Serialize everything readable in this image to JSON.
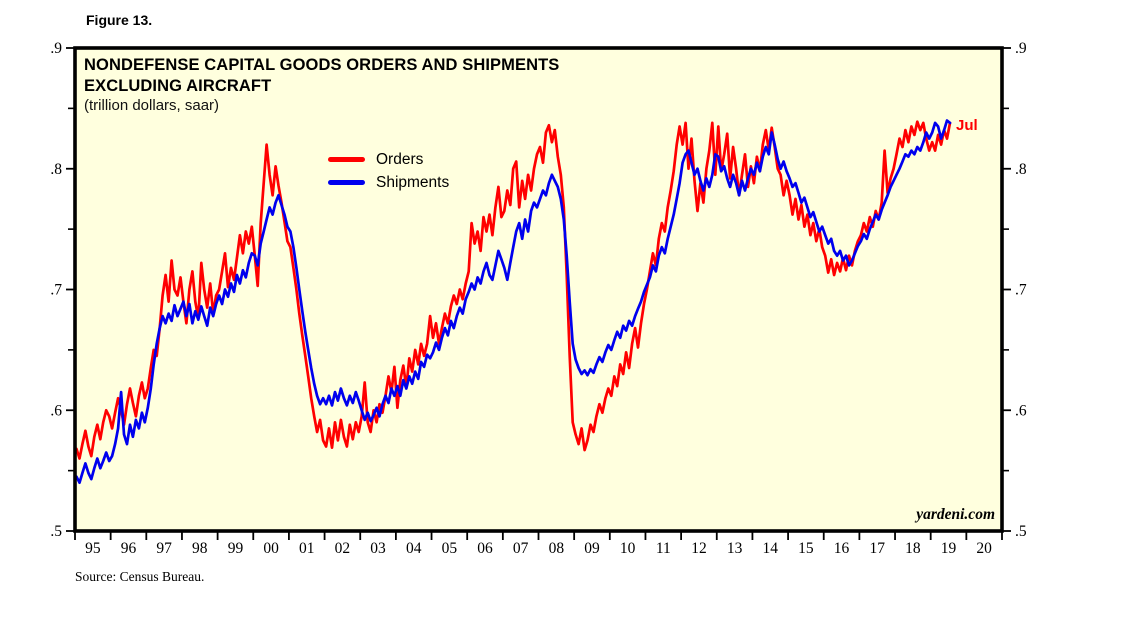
{
  "figure": {
    "label": "Figure 13."
  },
  "chart": {
    "title_line1": "NONDEFENSE CAPITAL GOODS ORDERS AND SHIPMENTS",
    "title_line2": "EXCLUDING AIRCRAFT",
    "subtitle": "(trillion dollars, saar)",
    "watermark": "yardeni.com",
    "end_label": "Jul",
    "background": "#FFFFDE",
    "border_color": "#000000"
  },
  "source": {
    "text": "Source: Census Bureau."
  },
  "chart_data": {
    "type": "line",
    "title": "NONDEFENSE CAPITAL GOODS ORDERS AND SHIPMENTS EXCLUDING AIRCRAFT",
    "subtitle": "(trillion dollars, saar)",
    "frequency": "monthly",
    "x_start": "1995-01",
    "x_end": "2019-07",
    "end_annotation": "Jul",
    "ylim": [
      0.5,
      0.9
    ],
    "grid": false,
    "legend_position": "inside-top-left",
    "y_major_ticks": [
      {
        "value": 0.5,
        "label": ".5"
      },
      {
        "value": 0.6,
        "label": ".6"
      },
      {
        "value": 0.7,
        "label": ".7"
      },
      {
        "value": 0.8,
        "label": ".8"
      },
      {
        "value": 0.9,
        "label": ".9"
      }
    ],
    "y_minor_ticks": [
      0.55,
      0.65,
      0.75,
      0.85
    ],
    "x_tick_labels": [
      "95",
      "96",
      "97",
      "98",
      "99",
      "00",
      "01",
      "02",
      "03",
      "04",
      "05",
      "06",
      "07",
      "08",
      "09",
      "10",
      "11",
      "12",
      "13",
      "14",
      "15",
      "16",
      "17",
      "18",
      "19",
      "20"
    ],
    "series": [
      {
        "name": "Orders",
        "color": "#FF0000",
        "values": [
          0.568,
          0.56,
          0.572,
          0.583,
          0.57,
          0.562,
          0.578,
          0.588,
          0.576,
          0.59,
          0.6,
          0.595,
          0.585,
          0.598,
          0.61,
          0.6,
          0.588,
          0.605,
          0.618,
          0.606,
          0.595,
          0.612,
          0.623,
          0.61,
          0.618,
          0.635,
          0.65,
          0.645,
          0.668,
          0.695,
          0.712,
          0.69,
          0.724,
          0.7,
          0.695,
          0.71,
          0.69,
          0.672,
          0.7,
          0.715,
          0.69,
          0.676,
          0.722,
          0.7,
          0.685,
          0.705,
          0.68,
          0.695,
          0.7,
          0.715,
          0.73,
          0.702,
          0.718,
          0.708,
          0.726,
          0.745,
          0.73,
          0.748,
          0.738,
          0.752,
          0.728,
          0.703,
          0.755,
          0.788,
          0.82,
          0.795,
          0.778,
          0.802,
          0.786,
          0.772,
          0.756,
          0.74,
          0.735,
          0.718,
          0.7,
          0.68,
          0.662,
          0.645,
          0.628,
          0.61,
          0.595,
          0.582,
          0.592,
          0.575,
          0.57,
          0.585,
          0.569,
          0.59,
          0.575,
          0.592,
          0.578,
          0.57,
          0.588,
          0.576,
          0.59,
          0.582,
          0.595,
          0.623,
          0.59,
          0.582,
          0.6,
          0.59,
          0.605,
          0.598,
          0.612,
          0.628,
          0.615,
          0.636,
          0.602,
          0.625,
          0.637,
          0.619,
          0.643,
          0.632,
          0.65,
          0.638,
          0.655,
          0.645,
          0.655,
          0.678,
          0.66,
          0.672,
          0.655,
          0.668,
          0.68,
          0.672,
          0.686,
          0.695,
          0.688,
          0.7,
          0.692,
          0.705,
          0.715,
          0.755,
          0.738,
          0.748,
          0.732,
          0.76,
          0.748,
          0.762,
          0.745,
          0.768,
          0.785,
          0.76,
          0.765,
          0.782,
          0.77,
          0.8,
          0.806,
          0.768,
          0.79,
          0.775,
          0.795,
          0.782,
          0.8,
          0.812,
          0.818,
          0.805,
          0.83,
          0.836,
          0.822,
          0.832,
          0.81,
          0.795,
          0.768,
          0.712,
          0.645,
          0.59,
          0.58,
          0.572,
          0.585,
          0.567,
          0.575,
          0.588,
          0.582,
          0.595,
          0.605,
          0.598,
          0.61,
          0.618,
          0.612,
          0.628,
          0.62,
          0.638,
          0.63,
          0.648,
          0.635,
          0.655,
          0.668,
          0.652,
          0.672,
          0.688,
          0.7,
          0.715,
          0.73,
          0.72,
          0.742,
          0.755,
          0.748,
          0.768,
          0.782,
          0.798,
          0.82,
          0.835,
          0.82,
          0.838,
          0.8,
          0.825,
          0.79,
          0.765,
          0.788,
          0.772,
          0.8,
          0.815,
          0.838,
          0.795,
          0.835,
          0.798,
          0.812,
          0.829,
          0.792,
          0.818,
          0.8,
          0.778,
          0.795,
          0.812,
          0.785,
          0.802,
          0.788,
          0.81,
          0.798,
          0.82,
          0.832,
          0.815,
          0.834,
          0.818,
          0.8,
          0.795,
          0.778,
          0.79,
          0.778,
          0.762,
          0.775,
          0.758,
          0.77,
          0.752,
          0.762,
          0.745,
          0.755,
          0.74,
          0.75,
          0.735,
          0.728,
          0.714,
          0.725,
          0.712,
          0.722,
          0.715,
          0.726,
          0.716,
          0.728,
          0.72,
          0.732,
          0.74,
          0.745,
          0.755,
          0.748,
          0.76,
          0.752,
          0.765,
          0.758,
          0.772,
          0.815,
          0.78,
          0.792,
          0.8,
          0.812,
          0.825,
          0.818,
          0.832,
          0.822,
          0.835,
          0.828,
          0.839,
          0.832,
          0.838,
          0.825,
          0.815,
          0.822,
          0.815,
          0.828,
          0.82,
          0.832,
          0.825,
          0.838
        ]
      },
      {
        "name": "Shipments",
        "color": "#0000EE",
        "values": [
          0.545,
          0.54,
          0.548,
          0.556,
          0.548,
          0.543,
          0.552,
          0.56,
          0.552,
          0.558,
          0.565,
          0.558,
          0.562,
          0.572,
          0.585,
          0.615,
          0.58,
          0.572,
          0.588,
          0.578,
          0.592,
          0.585,
          0.598,
          0.59,
          0.602,
          0.618,
          0.638,
          0.655,
          0.668,
          0.678,
          0.672,
          0.68,
          0.674,
          0.687,
          0.678,
          0.684,
          0.69,
          0.678,
          0.688,
          0.672,
          0.682,
          0.675,
          0.686,
          0.678,
          0.67,
          0.685,
          0.678,
          0.688,
          0.695,
          0.688,
          0.7,
          0.694,
          0.705,
          0.698,
          0.712,
          0.705,
          0.716,
          0.71,
          0.722,
          0.73,
          0.728,
          0.72,
          0.738,
          0.748,
          0.758,
          0.768,
          0.762,
          0.772,
          0.778,
          0.77,
          0.762,
          0.752,
          0.748,
          0.735,
          0.718,
          0.7,
          0.682,
          0.665,
          0.65,
          0.635,
          0.622,
          0.612,
          0.605,
          0.61,
          0.605,
          0.612,
          0.604,
          0.615,
          0.608,
          0.618,
          0.61,
          0.604,
          0.612,
          0.606,
          0.615,
          0.608,
          0.6,
          0.592,
          0.598,
          0.591,
          0.596,
          0.602,
          0.595,
          0.605,
          0.612,
          0.606,
          0.618,
          0.612,
          0.62,
          0.612,
          0.625,
          0.618,
          0.628,
          0.622,
          0.632,
          0.626,
          0.64,
          0.636,
          0.646,
          0.643,
          0.648,
          0.656,
          0.65,
          0.66,
          0.668,
          0.662,
          0.674,
          0.668,
          0.678,
          0.685,
          0.68,
          0.692,
          0.698,
          0.705,
          0.7,
          0.71,
          0.705,
          0.715,
          0.722,
          0.712,
          0.708,
          0.72,
          0.732,
          0.725,
          0.718,
          0.708,
          0.722,
          0.735,
          0.748,
          0.755,
          0.742,
          0.758,
          0.748,
          0.765,
          0.772,
          0.768,
          0.775,
          0.782,
          0.778,
          0.788,
          0.795,
          0.79,
          0.785,
          0.775,
          0.758,
          0.728,
          0.69,
          0.655,
          0.642,
          0.635,
          0.63,
          0.633,
          0.629,
          0.634,
          0.631,
          0.638,
          0.644,
          0.64,
          0.648,
          0.654,
          0.65,
          0.658,
          0.665,
          0.66,
          0.67,
          0.666,
          0.674,
          0.67,
          0.678,
          0.684,
          0.69,
          0.698,
          0.704,
          0.71,
          0.72,
          0.715,
          0.728,
          0.735,
          0.73,
          0.742,
          0.752,
          0.762,
          0.775,
          0.788,
          0.805,
          0.812,
          0.815,
          0.805,
          0.795,
          0.8,
          0.79,
          0.782,
          0.792,
          0.785,
          0.795,
          0.812,
          0.81,
          0.798,
          0.802,
          0.792,
          0.785,
          0.795,
          0.788,
          0.778,
          0.79,
          0.782,
          0.792,
          0.8,
          0.795,
          0.805,
          0.798,
          0.81,
          0.818,
          0.812,
          0.83,
          0.82,
          0.808,
          0.8,
          0.806,
          0.798,
          0.792,
          0.785,
          0.788,
          0.78,
          0.772,
          0.776,
          0.768,
          0.76,
          0.764,
          0.756,
          0.748,
          0.752,
          0.745,
          0.738,
          0.742,
          0.732,
          0.728,
          0.732,
          0.724,
          0.728,
          0.72,
          0.724,
          0.73,
          0.736,
          0.74,
          0.746,
          0.742,
          0.75,
          0.756,
          0.762,
          0.758,
          0.766,
          0.772,
          0.778,
          0.785,
          0.79,
          0.795,
          0.8,
          0.806,
          0.812,
          0.81,
          0.815,
          0.812,
          0.818,
          0.815,
          0.822,
          0.83,
          0.825,
          0.83,
          0.838,
          0.835,
          0.825,
          0.832,
          0.84,
          0.838
        ]
      }
    ]
  }
}
